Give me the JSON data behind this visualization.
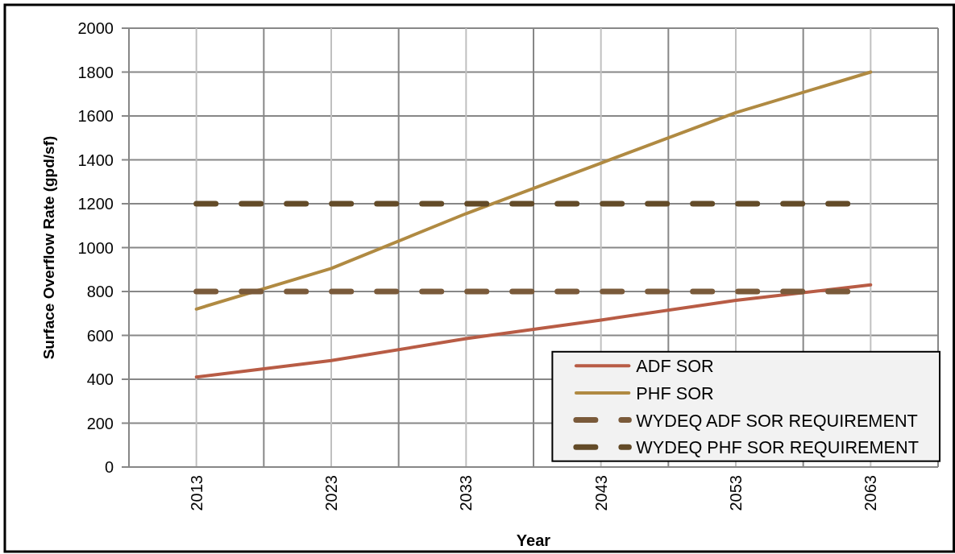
{
  "chart_data": {
    "type": "line",
    "xlabel": "Year",
    "ylabel": "Surface Overflow Rate (gpd/sf)",
    "x": [
      2013,
      2023,
      2033,
      2043,
      2053,
      2063
    ],
    "series": [
      {
        "name": "ADF SOR",
        "color": "#b85c45",
        "values": [
          410,
          485,
          585,
          670,
          760,
          830
        ]
      },
      {
        "name": "PHF SOR",
        "color": "#b08a42",
        "values": [
          720,
          905,
          1155,
          1385,
          1615,
          1800
        ]
      },
      {
        "name": "WYDEQ ADF SOR REQUIREMENT",
        "color": "#7a5a3a",
        "values": [
          800,
          800,
          800,
          800,
          800,
          800
        ],
        "line_style": "dashed"
      },
      {
        "name": "WYDEQ PHF SOR REQUIREMENT",
        "color": "#634b28",
        "values": [
          1200,
          1200,
          1200,
          1200,
          1200,
          1200
        ],
        "line_style": "dashed"
      }
    ],
    "xlim": [
      2008,
      2068
    ],
    "xticks": [
      2013,
      {
        "value": 2018,
        "label": null
      },
      2023,
      {
        "value": 2028,
        "label": null
      },
      2033,
      {
        "value": 2038,
        "label": null
      },
      2043,
      {
        "value": 2048,
        "label": null
      },
      2053,
      {
        "value": 2058,
        "label": null
      },
      2063,
      {
        "value": 2068,
        "label": null
      }
    ],
    "ylim": [
      0,
      2000
    ],
    "yticks": [
      0,
      200,
      400,
      600,
      800,
      1000,
      1200,
      1400,
      1600,
      1800,
      2000
    ],
    "grid": true,
    "legend": "bottom right",
    "line_style": "solid"
  }
}
